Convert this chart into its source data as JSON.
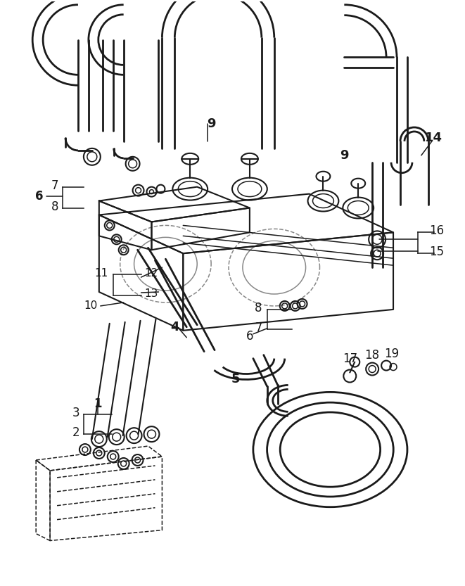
{
  "bg_color": "#ffffff",
  "line_color": "#1a1a1a",
  "fig_width": 6.61,
  "fig_height": 8.33,
  "dpi": 100,
  "lw_main": 2.0,
  "lw_med": 1.5,
  "lw_thin": 1.1,
  "font_size": 11
}
